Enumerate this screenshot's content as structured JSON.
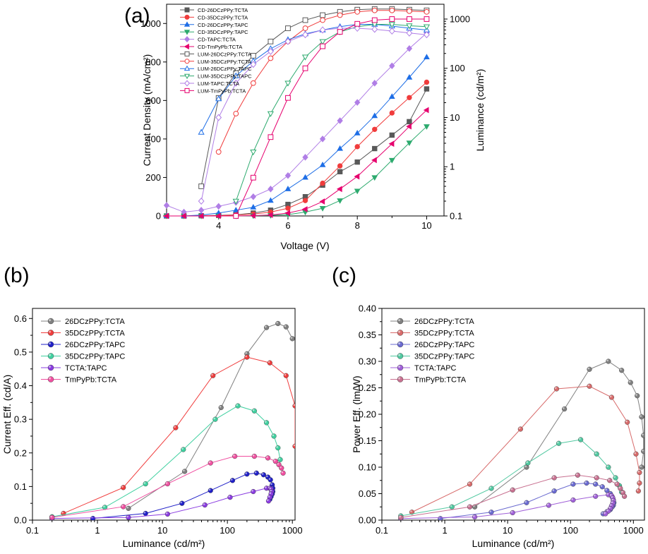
{
  "figure": {
    "panels": [
      {
        "label": "(a)",
        "type": "line",
        "xlabel": "Voltage (V)",
        "ylabel_left": "Current Density (mA/cm²)",
        "ylabel_right": "Luminance (cd/m²)",
        "xlim": [
          2.5,
          10.5
        ],
        "ylim_left": [
          0,
          1100
        ],
        "ylim_right": [
          0.1,
          2000
        ],
        "right_scale": "log",
        "xticks": [
          4,
          6,
          8,
          10
        ],
        "yticks_left": [
          0,
          200,
          400,
          600,
          800,
          1000
        ],
        "yticks_right": [
          0.1,
          1,
          10,
          100,
          1000
        ],
        "legend_position": "top-left",
        "legend": [
          "CD-26DCzPPy:TCTA",
          "CD-35DCzPPy:TCTA",
          "CD-26DCzPPy:TAPC",
          "CD-35DCzPPy:TAPC",
          "CD-TAPC:TCTA",
          "CD-TmPyPb:TCTA",
          "LUM-26DCzPPy:TCTA",
          "LUM-35DCzPPy:TCTA",
          "LUM-26DCzPPy:TAPC",
          "LUM-35DCzPPy:TAPC",
          "LUM-TAPC:TCTA",
          "LUM-TmPyPb:TCTA"
        ]
      },
      {
        "label": "(b)",
        "type": "scatter",
        "xlabel": "Luminance (cd/m²)",
        "ylabel": "Current Eff. (cd/A)",
        "xscale": "log",
        "xlim": [
          0.1,
          1100
        ],
        "ylim": [
          0,
          0.63
        ],
        "xticks": [
          "0.1",
          "1",
          "10",
          "100",
          "1000"
        ],
        "yticks": [
          "0.0",
          "0.1",
          "0.2",
          "0.3",
          "0.4",
          "0.5",
          "0.6"
        ],
        "legend_position": "top-left",
        "legend": [
          "26DCzPPy:TCTA",
          "35DCzPPy:TCTA",
          "26DCzPPy:TAPC",
          "35DCzPPy:TAPC",
          "TCTA:TAPC",
          "TmPyPb:TCTA"
        ]
      },
      {
        "label": "(c)",
        "type": "scatter",
        "xlabel": "Luminance (cd/m²)",
        "ylabel": "Power Eff. (lm/W)",
        "xscale": "log",
        "xlim": [
          0.1,
          1500
        ],
        "ylim": [
          0,
          0.4
        ],
        "xticks": [
          "0.1",
          "1",
          "10",
          "100",
          "1000"
        ],
        "yticks": [
          "0.00",
          "0.05",
          "0.10",
          "0.15",
          "0.20",
          "0.25",
          "0.30",
          "0.35",
          "0.40"
        ],
        "legend_position": "top-left",
        "legend": [
          "26DCzPPy:TCTA",
          "35DCzPPy:TCTA",
          "26DCzPPy:TAPC",
          "35DCzPPy:TAPC",
          "TCTA:TAPC",
          "TmPyPb:TCTA"
        ]
      }
    ]
  },
  "chart_data": [
    {
      "type": "line",
      "x": [
        2.5,
        3,
        3.5,
        4,
        4.5,
        5,
        5.5,
        6,
        6.5,
        7,
        7.5,
        8,
        8.5,
        9,
        9.5,
        10
      ],
      "series_cd": [
        {
          "name": "CD-26DCzPPy:TCTA",
          "color": "#595959",
          "marker": "square",
          "values": [
            0,
            0,
            1,
            3,
            6,
            15,
            30,
            60,
            100,
            160,
            230,
            280,
            350,
            420,
            490,
            660
          ]
        },
        {
          "name": "CD-35DCzPPy:TCTA",
          "color": "#f03c3c",
          "marker": "circle",
          "values": [
            0,
            0,
            1,
            2,
            5,
            10,
            20,
            40,
            80,
            170,
            260,
            360,
            450,
            535,
            615,
            695
          ]
        },
        {
          "name": "CD-26DCzPPy:TAPC",
          "color": "#1e6ee6",
          "marker": "triangle-up",
          "values": [
            0,
            0,
            5,
            15,
            30,
            45,
            80,
            140,
            200,
            265,
            350,
            430,
            520,
            620,
            720,
            825
          ]
        },
        {
          "name": "CD-35DCzPPy:TAPC",
          "color": "#2daa6e",
          "marker": "triangle-down",
          "values": [
            0,
            0,
            0,
            0,
            0,
            1,
            3,
            7,
            20,
            40,
            80,
            130,
            200,
            290,
            380,
            465
          ]
        },
        {
          "name": "CD-TAPC:TCTA",
          "color": "#b07ee6",
          "marker": "diamond",
          "values": [
            55,
            20,
            30,
            50,
            70,
            100,
            140,
            210,
            305,
            400,
            495,
            590,
            690,
            780,
            870,
            950
          ]
        },
        {
          "name": "CD-TmPyPb:TCTA",
          "color": "#e6006e",
          "marker": "triangle-left",
          "values": [
            0,
            0,
            0,
            0,
            0,
            2,
            5,
            15,
            35,
            75,
            140,
            205,
            290,
            375,
            465,
            550
          ]
        }
      ],
      "series_lum": [
        {
          "name": "LUM-26DCzPPy:TCTA",
          "color": "#595959",
          "marker": "square",
          "values": [
            null,
            null,
            0.4,
            25,
            80,
            180,
            350,
            650,
            950,
            1200,
            1400,
            1550,
            1600,
            1600,
            1550,
            1500
          ]
        },
        {
          "name": "LUM-35DCzPPy:TCTA",
          "color": "#f03c3c",
          "marker": "circle",
          "values": [
            null,
            null,
            null,
            2,
            12,
            50,
            160,
            350,
            650,
            950,
            1200,
            1400,
            1500,
            1500,
            1450,
            1400
          ]
        },
        {
          "name": "LUM-26DCzPPy:TAPC",
          "color": "#1e6ee6",
          "marker": "triangle-up",
          "values": [
            null,
            null,
            5,
            24,
            70,
            140,
            250,
            380,
            500,
            600,
            700,
            780,
            780,
            720,
            650,
            600
          ]
        },
        {
          "name": "LUM-35DCzPPy:TAPC",
          "color": "#2daa6e",
          "marker": "triangle-down",
          "values": [
            null,
            null,
            null,
            null,
            0.2,
            2,
            12,
            50,
            170,
            350,
            550,
            700,
            780,
            780,
            730,
            700
          ]
        },
        {
          "name": "LUM-TAPC:TCTA",
          "color": "#b07ee6",
          "marker": "diamond",
          "values": [
            null,
            null,
            0.2,
            10,
            50,
            120,
            220,
            350,
            480,
            600,
            650,
            650,
            620,
            570,
            520,
            480
          ]
        },
        {
          "name": "LUM-TmPyPb:TCTA",
          "color": "#e6006e",
          "marker": "square",
          "values": [
            null,
            null,
            null,
            null,
            0.1,
            0.6,
            4,
            25,
            100,
            280,
            550,
            800,
            950,
            1000,
            1000,
            1000
          ]
        }
      ]
    },
    {
      "type": "scatter",
      "series": [
        {
          "name": "26DCzPPy:TCTA",
          "color": "#808080",
          "x": [
            3,
            22,
            80,
            200,
            400,
            600,
            800,
            1000
          ],
          "y": [
            0.035,
            0.145,
            0.335,
            0.495,
            0.573,
            0.585,
            0.575,
            0.54
          ]
        },
        {
          "name": "35DCzPPy:TCTA",
          "color": "#f03c3c",
          "x": [
            0.3,
            2.5,
            16,
            60,
            200,
            450,
            800,
            1100,
            1100
          ],
          "y": [
            0.02,
            0.097,
            0.275,
            0.43,
            0.485,
            0.468,
            0.43,
            0.34,
            0.22
          ]
        },
        {
          "name": "26DCzPPy:TAPC",
          "color": "#2020c8",
          "x": [
            0.85,
            5.5,
            20,
            55,
            120,
            200,
            280,
            360,
            420,
            460,
            490,
            500,
            500,
            490,
            470,
            450
          ],
          "y": [
            0.005,
            0.02,
            0.05,
            0.088,
            0.118,
            0.137,
            0.14,
            0.135,
            0.128,
            0.12,
            0.105,
            0.095,
            0.085,
            0.078,
            0.07,
            0.062
          ]
        },
        {
          "name": "35DCzPPy:TAPC",
          "color": "#40d0a0",
          "x": [
            0.2,
            1.3,
            5.5,
            21,
            65,
            145,
            260,
            400,
            520,
            600,
            650
          ],
          "y": [
            0.01,
            0.038,
            0.108,
            0.21,
            0.3,
            0.34,
            0.325,
            0.29,
            0.25,
            0.215,
            0.18
          ]
        },
        {
          "name": "TCTA:TAPC",
          "color": "#8a3ce0",
          "x": [
            0.2,
            3,
            12,
            45,
            110,
            250,
            400,
            450,
            470,
            480,
            470,
            450,
            430
          ],
          "y": [
            0.005,
            0.008,
            0.018,
            0.045,
            0.068,
            0.085,
            0.095,
            0.095,
            0.092,
            0.085,
            0.078,
            0.068,
            0.057
          ]
        },
        {
          "name": "TmPyPb:TCTA",
          "color": "#f04fa0",
          "x": [
            0.2,
            2.5,
            12,
            55,
            130,
            260,
            420,
            550,
            620,
            680,
            720
          ],
          "y": [
            0.008,
            0.04,
            0.108,
            0.17,
            0.19,
            0.19,
            0.185,
            0.175,
            0.165,
            0.155,
            0.14
          ]
        }
      ]
    },
    {
      "type": "scatter",
      "series": [
        {
          "name": "26DCzPPy:TCTA",
          "color": "#808080",
          "x": [
            3,
            20,
            80,
            200,
            400,
            650,
            900,
            1150,
            1350,
            1450,
            1450,
            1350
          ],
          "y": [
            0.025,
            0.1,
            0.21,
            0.285,
            0.3,
            0.283,
            0.26,
            0.235,
            0.195,
            0.16,
            0.13,
            0.1
          ]
        },
        {
          "name": "35DCzPPy:TCTA",
          "color": "#d76a6a",
          "x": [
            0.3,
            2.5,
            16,
            60,
            200,
            450,
            800,
            1100,
            1250,
            1250,
            1200
          ],
          "y": [
            0.015,
            0.068,
            0.172,
            0.248,
            0.253,
            0.232,
            0.185,
            0.125,
            0.09,
            0.07,
            0.055
          ]
        },
        {
          "name": "26DCzPPy:TAPC",
          "color": "#6a6ad0",
          "x": [
            0.85,
            5.5,
            20,
            55,
            110,
            180,
            250,
            320,
            380,
            430,
            460,
            480,
            490,
            480,
            460,
            430,
            380,
            330
          ],
          "y": [
            0.003,
            0.015,
            0.033,
            0.055,
            0.068,
            0.07,
            0.068,
            0.063,
            0.056,
            0.05,
            0.044,
            0.038,
            0.033,
            0.028,
            0.025,
            0.02,
            0.016,
            0.012
          ]
        },
        {
          "name": "35DCzPPy:TAPC",
          "color": "#50c8a0",
          "x": [
            0.2,
            1.3,
            5.5,
            21,
            65,
            145,
            260,
            400,
            520,
            600,
            650
          ],
          "y": [
            0.008,
            0.025,
            0.06,
            0.108,
            0.145,
            0.152,
            0.125,
            0.1,
            0.08,
            0.065,
            0.053
          ]
        },
        {
          "name": "TCTA:TAPC",
          "color": "#a060d8",
          "x": [
            0.2,
            3,
            12,
            45,
            110,
            250,
            400,
            450,
            470,
            480,
            470,
            450,
            430,
            400,
            360
          ],
          "y": [
            0.003,
            0.006,
            0.014,
            0.028,
            0.038,
            0.045,
            0.048,
            0.046,
            0.042,
            0.037,
            0.032,
            0.027,
            0.022,
            0.017,
            0.012
          ]
        },
        {
          "name": "TmPyPb:TCTA",
          "color": "#c87090",
          "x": [
            0.2,
            2.5,
            12,
            55,
            130,
            260,
            420,
            550,
            620,
            680,
            720
          ],
          "y": [
            0.005,
            0.025,
            0.057,
            0.08,
            0.085,
            0.08,
            0.075,
            0.068,
            0.06,
            0.052,
            0.045
          ]
        }
      ]
    }
  ]
}
